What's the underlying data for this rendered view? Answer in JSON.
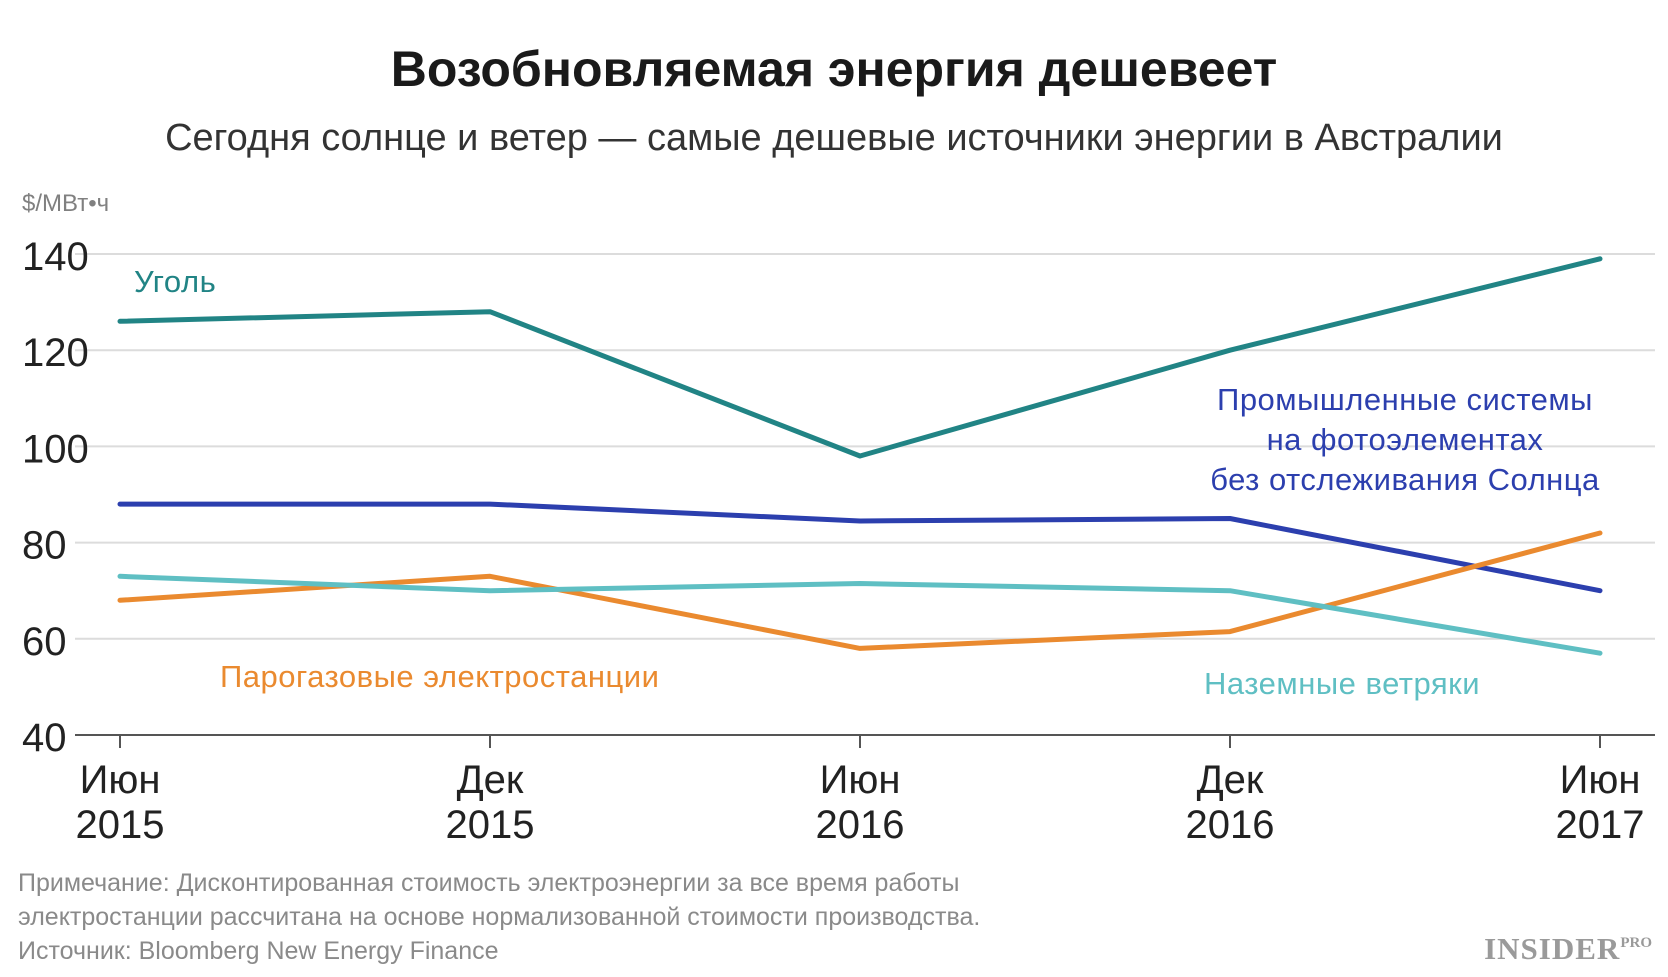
{
  "header": {
    "title": "Возобновляемая энергия дешевеет",
    "subtitle": "Сегодня солнце и ветер — самые дешевые источники энергии в Австралии"
  },
  "chart_data": {
    "type": "line",
    "ylabel": "$/МВт•ч",
    "ylim": [
      40,
      140
    ],
    "yticks": [
      40,
      60,
      80,
      100,
      120,
      140
    ],
    "grid": true,
    "categories": [
      {
        "month": "Июн",
        "year": "2015"
      },
      {
        "month": "Дек",
        "year": "2015"
      },
      {
        "month": "Июн",
        "year": "2016"
      },
      {
        "month": "Дек",
        "year": "2016"
      },
      {
        "month": "Июн",
        "year": "2017"
      }
    ],
    "series": [
      {
        "key": "coal",
        "name": "Уголь",
        "color": "#218485",
        "values": [
          126,
          128,
          98,
          120,
          139
        ]
      },
      {
        "key": "solar",
        "name": [
          "Промышленные системы",
          "на фотоэлементах",
          "без отслеживания Солнца"
        ],
        "color": "#2c3fae",
        "values": [
          88,
          88,
          84.5,
          85,
          70
        ]
      },
      {
        "key": "gas",
        "name": "Парогазовые электростанции",
        "color": "#ea8a2f",
        "values": [
          68,
          73,
          58,
          61.5,
          82
        ]
      },
      {
        "key": "wind",
        "name": "Наземные ветряки",
        "color": "#5fbfc3",
        "values": [
          73,
          70,
          71.5,
          70,
          57
        ]
      }
    ]
  },
  "footer": {
    "note_line1": "Примечание: Дисконтированная стоимость электроэнергии за все время работы",
    "note_line2": "электростанции рассчитана на основе нормализованной стоимости производства.",
    "source": "Источник: Bloomberg New Energy Finance"
  },
  "logo": {
    "main": "INSIDER",
    "suffix": "PRO"
  }
}
